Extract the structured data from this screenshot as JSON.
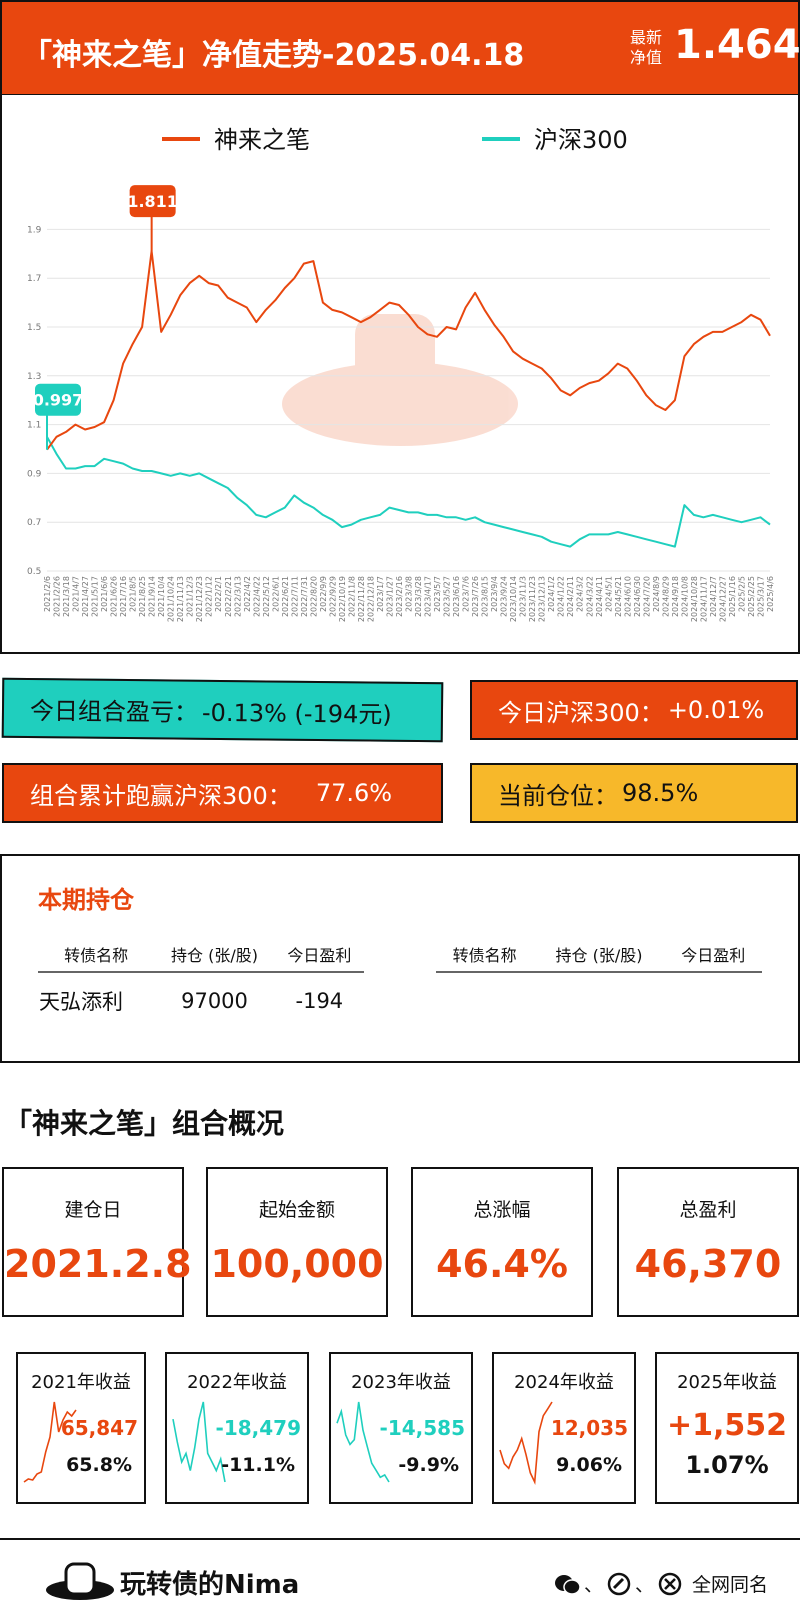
{
  "header": {
    "title": "「神来之笔」净值走势-2025.04.18",
    "nav_label_1": "最新",
    "nav_label_2": "净值",
    "nav": "1.464"
  },
  "chart_data": {
    "type": "line",
    "categories": [
      "2021/2/6",
      "2021/2/26",
      "2021/3/18",
      "2021/4/7",
      "2021/4/27",
      "2021/5/17",
      "2021/6/6",
      "2021/6/26",
      "2021/7/16",
      "2021/8/5",
      "2021/8/25",
      "2021/9/14",
      "2021/10/4",
      "2021/10/24",
      "2021/11/13",
      "2021/12/3",
      "2021/12/23",
      "2022/1/12",
      "2022/2/1",
      "2022/2/21",
      "2022/3/13",
      "2022/4/2",
      "2022/4/22",
      "2022/5/12",
      "2022/6/1",
      "2022/6/21",
      "2022/7/11",
      "2022/7/31",
      "2022/8/20",
      "2022/9/9",
      "2022/9/29",
      "2022/10/19",
      "2022/11/8",
      "2022/11/28",
      "2022/12/18",
      "2023/1/7",
      "2023/1/27",
      "2023/2/16",
      "2023/3/8",
      "2023/3/28",
      "2023/4/17",
      "2023/5/7",
      "2023/5/27",
      "2023/6/16",
      "2023/7/6",
      "2023/7/26",
      "2023/8/15",
      "2023/9/4",
      "2023/9/24",
      "2023/10/14",
      "2023/11/3",
      "2023/11/23",
      "2023/12/13",
      "2024/1/2",
      "2024/1/22",
      "2024/2/11",
      "2024/3/2",
      "2024/3/22",
      "2024/4/11",
      "2024/5/1",
      "2024/5/21",
      "2024/6/10",
      "2024/6/30",
      "2024/7/20",
      "2024/8/9",
      "2024/8/29",
      "2024/9/18",
      "2024/10/8",
      "2024/10/28",
      "2024/11/17",
      "2024/12/7",
      "2024/12/27",
      "2025/1/16",
      "2025/2/5",
      "2025/2/25",
      "2025/3/17",
      "2025/4/6"
    ],
    "series": [
      {
        "name": "神来之笔",
        "color": "#e8470f",
        "values": [
          0.997,
          1.05,
          1.07,
          1.1,
          1.08,
          1.09,
          1.11,
          1.2,
          1.35,
          1.43,
          1.5,
          1.811,
          1.48,
          1.55,
          1.63,
          1.68,
          1.71,
          1.68,
          1.67,
          1.62,
          1.6,
          1.58,
          1.52,
          1.57,
          1.61,
          1.66,
          1.7,
          1.76,
          1.77,
          1.6,
          1.57,
          1.56,
          1.54,
          1.52,
          1.54,
          1.57,
          1.6,
          1.59,
          1.55,
          1.5,
          1.47,
          1.46,
          1.5,
          1.49,
          1.58,
          1.64,
          1.57,
          1.51,
          1.46,
          1.4,
          1.37,
          1.35,
          1.33,
          1.29,
          1.24,
          1.22,
          1.25,
          1.27,
          1.28,
          1.31,
          1.35,
          1.33,
          1.28,
          1.22,
          1.18,
          1.16,
          1.2,
          1.38,
          1.43,
          1.46,
          1.48,
          1.48,
          1.5,
          1.52,
          1.55,
          1.53,
          1.464
        ]
      },
      {
        "name": "沪深300",
        "color": "#1fcfbe",
        "values": [
          1.05,
          0.98,
          0.92,
          0.92,
          0.93,
          0.93,
          0.96,
          0.95,
          0.94,
          0.92,
          0.91,
          0.91,
          0.9,
          0.89,
          0.9,
          0.89,
          0.9,
          0.88,
          0.86,
          0.84,
          0.8,
          0.77,
          0.73,
          0.72,
          0.74,
          0.76,
          0.81,
          0.78,
          0.76,
          0.73,
          0.71,
          0.68,
          0.69,
          0.71,
          0.72,
          0.73,
          0.76,
          0.75,
          0.74,
          0.74,
          0.73,
          0.73,
          0.72,
          0.72,
          0.71,
          0.72,
          0.7,
          0.69,
          0.68,
          0.67,
          0.66,
          0.65,
          0.64,
          0.62,
          0.61,
          0.6,
          0.63,
          0.65,
          0.65,
          0.65,
          0.66,
          0.65,
          0.64,
          0.63,
          0.62,
          0.61,
          0.6,
          0.77,
          0.73,
          0.72,
          0.73,
          0.72,
          0.71,
          0.7,
          0.71,
          0.72,
          0.69
        ]
      }
    ],
    "annotated": [
      {
        "series": 0,
        "point": 11,
        "color": "#e8470f"
      },
      {
        "series": 0,
        "point": 0,
        "color": "#1fcfbe"
      }
    ],
    "ylim": [
      0.5,
      2.0
    ],
    "yticks": [
      0.5,
      0.7,
      0.9,
      1.1,
      1.3,
      1.5,
      1.7,
      1.9
    ],
    "grid": true
  },
  "stats": [
    {
      "label": "今日组合盈亏：",
      "value": "-0.13% (-194元)"
    },
    {
      "label": "今日沪深300：",
      "value": "+0.01%"
    },
    {
      "label": "组合累计跑赢沪深300：",
      "value": "77.6%"
    },
    {
      "label": "当前仓位：",
      "value": "98.5%"
    }
  ],
  "holdings": {
    "title": "本期持仓",
    "columns": [
      "转债名称",
      "持仓 (张/股)",
      "今日盈利"
    ],
    "rows": [
      [
        "天弘添利",
        97000,
        -194
      ]
    ]
  },
  "overview": {
    "title": "「神来之笔」组合概况",
    "cards": [
      {
        "label": "建仓日",
        "value": "2021.2.8"
      },
      {
        "label": "起始金额",
        "value": "100,000"
      },
      {
        "label": "总涨幅",
        "value": "46.4%"
      },
      {
        "label": "总盈利",
        "value": "46,370"
      }
    ]
  },
  "yearly": [
    {
      "label": "2021年收益",
      "amount": "65,847",
      "pct": "65.8%",
      "color": "#e8470f",
      "trend": [
        1.0,
        1.03,
        1.02,
        1.08,
        1.1,
        1.3,
        1.45,
        1.8,
        1.5,
        1.62,
        1.7,
        1.66,
        1.72
      ]
    },
    {
      "label": "2022年收益",
      "amount": "-18,479",
      "pct": "-11.1%",
      "color": "#1fcfbe",
      "trend": [
        1.7,
        1.62,
        1.55,
        1.58,
        1.52,
        1.6,
        1.7,
        1.76,
        1.58,
        1.55,
        1.52,
        1.56,
        1.48
      ]
    },
    {
      "label": "2023年收益",
      "amount": "-14,585",
      "pct": "-9.9%",
      "color": "#1fcfbe",
      "trend": [
        1.55,
        1.6,
        1.5,
        1.46,
        1.48,
        1.64,
        1.52,
        1.45,
        1.38,
        1.35,
        1.32,
        1.33,
        1.3
      ]
    },
    {
      "label": "2024年收益",
      "amount": "12,035",
      "pct": "9.06%",
      "color": "#e8470f",
      "trend": [
        1.3,
        1.24,
        1.22,
        1.27,
        1.3,
        1.35,
        1.28,
        1.2,
        1.16,
        1.38,
        1.45,
        1.48,
        1.51
      ]
    },
    {
      "label": "2025年收益",
      "amount": "+1,552",
      "pct": "1.07%"
    }
  ],
  "footer": {
    "brand": "玩转债的Nima",
    "sep": "、",
    "tagline": "全网同名"
  }
}
